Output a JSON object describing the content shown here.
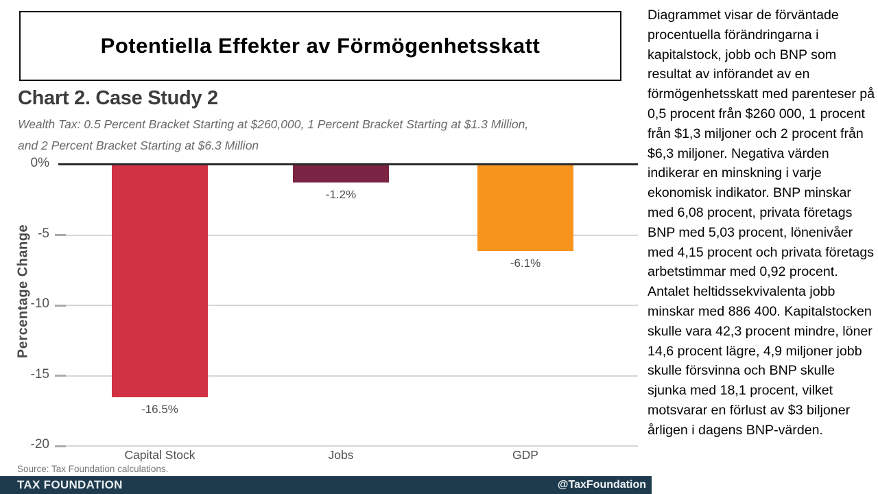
{
  "slide": {
    "headline": "Potentiella Effekter av Förmögenhetsskatt"
  },
  "chart": {
    "title": "Chart 2. Case Study 2",
    "subtitle_line1": "Wealth Tax: 0.5 Percent Bracket Starting at $260,000, 1 Percent Bracket Starting at $1.3 Million,",
    "subtitle_line2": "and 2 Percent Bracket Starting at $6.3 Million",
    "source": "Source: Tax Foundation calculations."
  },
  "chart_data": {
    "type": "bar",
    "categories": [
      "Capital Stock",
      "Jobs",
      "GDP"
    ],
    "values": [
      -16.5,
      -1.2,
      -6.1
    ],
    "data_labels": [
      "-16.5%",
      "-1.2%",
      "-6.1%"
    ],
    "bar_colors": [
      "#d13243",
      "#7b2342",
      "#f7941e"
    ],
    "title": "Chart 2. Case Study 2",
    "xlabel": "",
    "ylabel": "Percentage Change",
    "yticks": [
      0,
      -5,
      -10,
      -15,
      -20
    ],
    "ytick_labels": [
      "0%",
      "-5",
      "-10",
      "-15",
      "-20"
    ],
    "ylim": [
      -20,
      0
    ],
    "grid": true,
    "legend": false
  },
  "footer": {
    "brand": "TAX FOUNDATION",
    "handle": "@TaxFoundation",
    "bar_color": "#1e3b4d"
  },
  "sidebar_text": {
    "paragraph": "Diagrammet visar de förväntade procentuella förändringarna i kapitalstock, jobb och BNP som resultat av införandet av en förmögenhetsskatt med parenteser på 0,5 procent från $260 000, 1 procent från $1,3 miljoner och 2 procent från $6,3 miljoner. Negativa värden indikerar en minskning i varje ekonomisk indikator. BNP minskar med 6,08 procent, privata företags BNP med 5,03 procent, lönenivåer med 4,15 procent och privata företags arbetstimmar med 0,92 procent. Antalet heltidssekvivalenta jobb minskar med 886 400. Kapitalstocken skulle vara 42,3 procent mindre, löner 14,6 procent lägre, 4,9 miljoner jobb skulle försvinna och BNP skulle sjunka med 18,1 procent, vilket motsvarar en förlust av $3 biljoner årligen i dagens BNP-värden."
  }
}
